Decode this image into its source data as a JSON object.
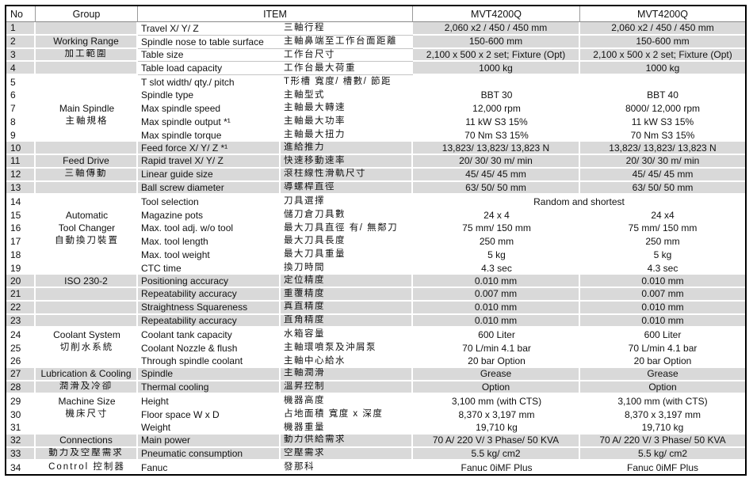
{
  "header": {
    "no": "No",
    "group": "Group",
    "item": "ITEM",
    "model1": "MVT4200Q",
    "model2": "MVT4200Q"
  },
  "colors": {
    "band": "#d9d9d9",
    "frame": "#000000",
    "hairline": "#c4c4c4",
    "gridline": "#9a9a9a",
    "headline": "#8a8a8a",
    "text": "#111111"
  },
  "rows": [
    {
      "no": "1",
      "group": "",
      "item_en": "Travel X/ Y/ Z",
      "item_zh": "三軸行程",
      "val1": "2,060 x2 / 450 / 450 mm",
      "val2": "2,060 x2 / 450 / 450 mm"
    },
    {
      "no": "2",
      "group": "Working Range",
      "item_en": "Spindle nose to table surface",
      "item_zh": "主軸鼻端至工作台面距離",
      "val1": "150-600 mm",
      "val2": "150-600 mm"
    },
    {
      "no": "3",
      "group": "加工範圍",
      "item_en": "Table size",
      "item_zh": "工作台尺寸",
      "val1": "2,100 x 500 x 2 set; Fixture (Opt)",
      "val2": "2,100 x 500 x 2 set; Fixture (Opt)"
    },
    {
      "no": "4",
      "group": "",
      "item_en": "Table load capacity",
      "item_zh": "工作台最大荷重",
      "val1": "1000 kg",
      "val2": "1000 kg"
    },
    {
      "no": "5",
      "group": "",
      "item_en": "T slot width/ qty./ pitch",
      "item_zh": "T形槽 寬度/ 槽數/ 節距",
      "val1": "",
      "val2": ""
    },
    {
      "no": "6",
      "group": "",
      "item_en": "Spindle type",
      "item_zh": "主軸型式",
      "val1": "BBT 30",
      "val2": "BBT 40"
    },
    {
      "no": "7",
      "group": "Main Spindle",
      "item_en": "Max spindle speed",
      "item_zh": "主軸最大轉速",
      "val1": "12,000 rpm",
      "val2": "8000/ 12,000 rpm"
    },
    {
      "no": "8",
      "group": "主軸規格",
      "item_en": "Max spindle output *¹",
      "item_zh": "主軸最大功率",
      "val1": "11 kW  S3 15%",
      "val2": "11 kW  S3 15%"
    },
    {
      "no": "9",
      "group": "",
      "item_en": "Max spindle torque",
      "item_zh": "主軸最大扭力",
      "val1": "70 Nm  S3 15%",
      "val2": "70 Nm  S3 15%"
    },
    {
      "no": "10",
      "group": "",
      "item_en": "Feed force X/ Y/ Z *¹",
      "item_zh": "進給推力",
      "val1": "13,823/ 13,823/ 13,823 N",
      "val2": "13,823/ 13,823/ 13,823 N"
    },
    {
      "no": "11",
      "group": "Feed Drive",
      "item_en": "Rapid travel X/ Y/ Z",
      "item_zh": "快速移動速率",
      "val1": "20/ 30/ 30 m/ min",
      "val2": "20/ 30/ 30 m/ min"
    },
    {
      "no": "12",
      "group": "三軸傳動",
      "item_en": "Linear guide size",
      "item_zh": "滾柱線性滑軌尺寸",
      "val1": "45/ 45/ 45 mm",
      "val2": "45/ 45/ 45 mm"
    },
    {
      "no": "13",
      "group": "",
      "item_en": "Ball screw diameter",
      "item_zh": "導螺桿直徑",
      "val1": "63/ 50/ 50 mm",
      "val2": "63/ 50/ 50 mm"
    },
    {
      "no": "14",
      "group": "",
      "item_en": "Tool selection",
      "item_zh": "刀具選擇",
      "val_span": "Random and shortest"
    },
    {
      "no": "15",
      "group": "Automatic",
      "item_en": "Magazine pots",
      "item_zh": "儲刀倉刀具數",
      "val1": "24 x 4",
      "val2": "24 x4"
    },
    {
      "no": "16",
      "group": "Tool Changer",
      "item_en": "Max. tool  adj. w/o tool",
      "item_zh": "最大刀具直徑 有/ 無鄰刀",
      "val1": "75 mm/ 150 mm",
      "val2": "75 mm/ 150 mm"
    },
    {
      "no": "17",
      "group": "自動換刀裝置",
      "item_en": "Max. tool length",
      "item_zh": "最大刀具長度",
      "val1": "250 mm",
      "val2": "250 mm"
    },
    {
      "no": "18",
      "group": "",
      "item_en": "Max. tool weight",
      "item_zh": "最大刀具重量",
      "val1": "5 kg",
      "val2": "5 kg"
    },
    {
      "no": "19",
      "group": "",
      "item_en": "CTC time",
      "item_zh": "換刀時間",
      "val1": "4.3 sec",
      "val2": "4.3 sec"
    },
    {
      "no": "20",
      "group": "ISO 230-2",
      "item_en": "Positioning accuracy",
      "item_zh": "定位精度",
      "val1": "0.010 mm",
      "val2": "0.010 mm"
    },
    {
      "no": "21",
      "group": "",
      "item_en": "Repeatability accuracy",
      "item_zh": "重覆精度",
      "val1": "0.007 mm",
      "val2": "0.007 mm"
    },
    {
      "no": "22",
      "group": "",
      "item_en": "Straightness Squareness",
      "item_zh": "真直精度",
      "val1": "0.010 mm",
      "val2": "0.010 mm"
    },
    {
      "no": "23",
      "group": "",
      "item_en": "Repeatability accuracy",
      "item_zh": "直角精度",
      "val1": "0.010 mm",
      "val2": "0.010 mm"
    },
    {
      "no": "24",
      "group": "Coolant System",
      "item_en": "Coolant tank capacity",
      "item_zh": "水箱容量",
      "val1": "600 Liter",
      "val2": "600 Liter"
    },
    {
      "no": "25",
      "group": "切削水系統",
      "item_en": "Coolant Nozzle & flush",
      "item_zh": "主軸環噴泵及沖屑泵",
      "val1": "70 L/min 4.1 bar",
      "val2": "70 L/min 4.1 bar"
    },
    {
      "no": "26",
      "group": "",
      "item_en": "Through spindle coolant",
      "item_zh": "主軸中心給水",
      "val1": "20 bar Option",
      "val2": "20 bar Option"
    },
    {
      "no": "27",
      "group": "Lubrication & Cooling",
      "item_en": "Spindle",
      "item_zh": "主軸潤滑",
      "val1": "Grease",
      "val2": "Grease"
    },
    {
      "no": "28",
      "group": "潤滑及冷卻",
      "item_en": "Thermal cooling",
      "item_zh": "溫昇控制",
      "val1": "Option",
      "val2": "Option"
    },
    {
      "no": "29",
      "group": "Machine Size",
      "item_en": "Height",
      "item_zh": "機器高度",
      "val1": "3,100 mm (with CTS)",
      "val2": "3,100 mm (with CTS)"
    },
    {
      "no": "30",
      "group": "機床尺寸",
      "item_en": "Floor space W x D",
      "item_zh": "占地面積 寬度 x 深度",
      "val1": "8,370 x 3,197 mm",
      "val2": "8,370 x 3,197 mm"
    },
    {
      "no": "31",
      "group": "",
      "item_en": "Weight",
      "item_zh": "機器重量",
      "val1": "19,710 kg",
      "val2": "19,710 kg"
    },
    {
      "no": "32",
      "group": "Connections",
      "item_en": "Main power",
      "item_zh": "動力供給需求",
      "val1": "70 A/ 220 V/ 3 Phase/ 50 KVA",
      "val2": "70 A/ 220 V/ 3 Phase/ 50 KVA"
    },
    {
      "no": "33",
      "group": "動力及空壓需求",
      "item_en": "Pneumatic consumption",
      "item_zh": "空壓需求",
      "val1": "5.5 kg/ cm2",
      "val2": "5.5 kg/ cm2"
    },
    {
      "no": "34",
      "group": "Control 控制器",
      "item_en": "Fanuc",
      "item_zh": "發那科",
      "val1": "Fanuc 0iMF Plus",
      "val2": "Fanuc 0iMF Plus"
    }
  ]
}
